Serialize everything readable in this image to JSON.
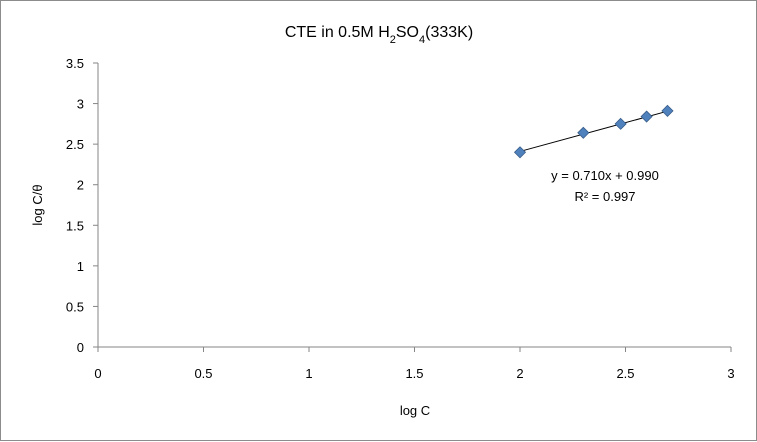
{
  "chart_data": {
    "type": "scatter",
    "title": {
      "main": "CTE in 0.5M H",
      "sub1": "2",
      "mid": "SO",
      "sub2": "4",
      "tail": "(333K)"
    },
    "xlabel": "log C",
    "ylabel": "log C/θ",
    "xlim": [
      0,
      3
    ],
    "ylim": [
      0,
      3.5
    ],
    "x_ticks": [
      0,
      0.5,
      1,
      1.5,
      2,
      2.5,
      3
    ],
    "y_ticks": [
      0,
      0.5,
      1,
      1.5,
      2,
      2.5,
      3,
      3.5
    ],
    "x_tick_labels": [
      "0",
      "0.5",
      "1",
      "1.5",
      "2",
      "2.5",
      "3"
    ],
    "y_tick_labels": [
      "0",
      "0.5",
      "1",
      "1.5",
      "2",
      "2.5",
      "3",
      "3.5"
    ],
    "grid": false,
    "legend": "none",
    "marker_color": "#4f81bd",
    "marker_edge_color": "#385d8a",
    "series": [
      {
        "x": [
          2.0,
          2.3,
          2.477,
          2.6,
          2.699
        ],
        "y": [
          2.4,
          2.64,
          2.75,
          2.84,
          2.91
        ]
      }
    ],
    "trendline": {
      "slope": 0.71,
      "intercept": 0.99,
      "x_range": [
        2.0,
        2.699
      ],
      "equation": "y = 0.710x + 0.990",
      "r2_label": "R² = 0.997"
    }
  }
}
